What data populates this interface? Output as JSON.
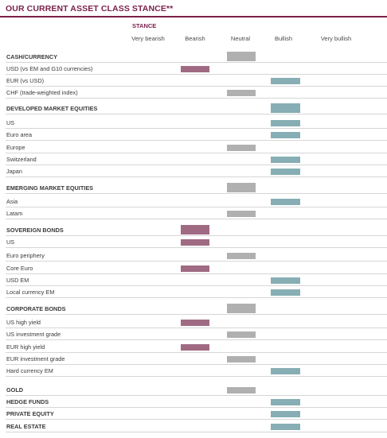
{
  "title": "OUR CURRENT ASSET CLASS STANCE**",
  "stance_label": "STANCE",
  "columns": [
    "Very bearish",
    "Bearish",
    "Neutral",
    "Bullish",
    "Very bullish"
  ],
  "colors": {
    "bearish": "#a06a83",
    "neutral": "#b0b0b0",
    "bullish": "#86aeb4",
    "title": "#7a1f4a"
  },
  "rows": [
    {
      "label": "CASH/CURRENCY",
      "kind": "head",
      "stance": "Neutral"
    },
    {
      "label": "USD (vs EM and G10 currencies)",
      "kind": "item",
      "stance": "Bearish"
    },
    {
      "label": "EUR (vs USD)",
      "kind": "item",
      "stance": "Bullish"
    },
    {
      "label": "CHF (trade-weighted index)",
      "kind": "item",
      "stance": "Neutral"
    },
    {
      "label": "DEVELOPED MARKET EQUITIES",
      "kind": "head",
      "stance": "Bullish"
    },
    {
      "label": "US",
      "kind": "item",
      "stance": "Bullish"
    },
    {
      "label": "Euro area",
      "kind": "item",
      "stance": "Bullish"
    },
    {
      "label": "Europe",
      "kind": "item",
      "stance": "Neutral"
    },
    {
      "label": "Switzerland",
      "kind": "item",
      "stance": "Bullish"
    },
    {
      "label": "Japan",
      "kind": "item",
      "stance": "Bullish"
    },
    {
      "label": "EMERGING MARKET EQUITIES",
      "kind": "head",
      "stance": "Neutral"
    },
    {
      "label": "Asia",
      "kind": "item",
      "stance": "Bullish"
    },
    {
      "label": "Latam",
      "kind": "item",
      "stance": "Neutral"
    },
    {
      "label": "SOVEREIGN BONDS",
      "kind": "head",
      "stance": "Bearish"
    },
    {
      "label": "US",
      "kind": "item",
      "stance": "Bearish"
    },
    {
      "label": "Euro periphery",
      "kind": "item",
      "stance": "Neutral"
    },
    {
      "label": "Core Euro",
      "kind": "item",
      "stance": "Bearish"
    },
    {
      "label": "USD EM",
      "kind": "item",
      "stance": "Bullish"
    },
    {
      "label": "Local currency EM",
      "kind": "item",
      "stance": "Bullish"
    },
    {
      "label": "CORPORATE BONDS",
      "kind": "head",
      "stance": "Neutral"
    },
    {
      "label": "US high yield",
      "kind": "item",
      "stance": "Bearish"
    },
    {
      "label": "US investment grade",
      "kind": "item",
      "stance": "Neutral"
    },
    {
      "label": "EUR high yield",
      "kind": "item",
      "stance": "Bearish"
    },
    {
      "label": "EUR investment grade",
      "kind": "item",
      "stance": "Neutral"
    },
    {
      "label": "Hard currency EM",
      "kind": "item",
      "stance": "Bullish"
    },
    {
      "label": "GOLD",
      "kind": "major",
      "stance": "Neutral"
    },
    {
      "label": "HEDGE FUNDS",
      "kind": "major",
      "stance": "Bullish"
    },
    {
      "label": "PRIVATE EQUITY",
      "kind": "major",
      "stance": "Bullish"
    },
    {
      "label": "REAL ESTATE",
      "kind": "major",
      "stance": "Bullish"
    }
  ]
}
